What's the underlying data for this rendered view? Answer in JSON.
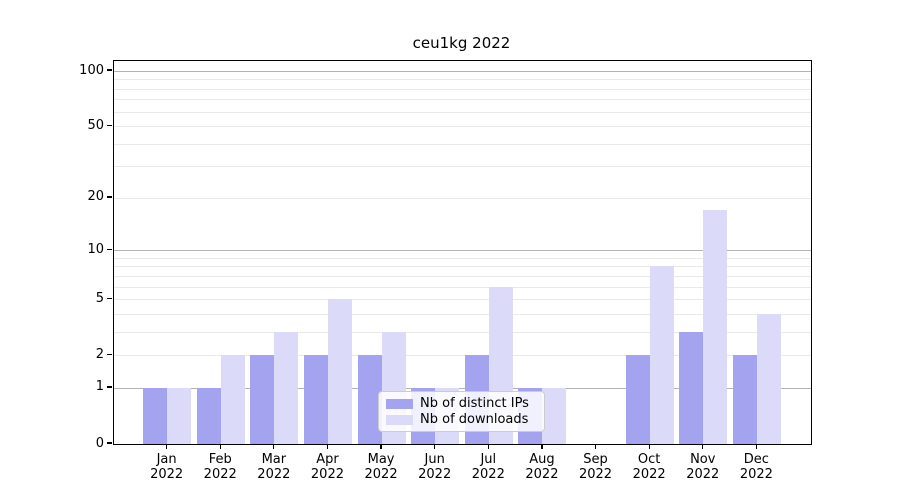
{
  "figure": {
    "title": "ceu1kg 2022",
    "background_color": "#ffffff"
  },
  "chart_data": {
    "type": "bar",
    "title": "ceu1kg 2022",
    "categories": [
      {
        "month": "Jan",
        "year": "2022"
      },
      {
        "month": "Feb",
        "year": "2022"
      },
      {
        "month": "Mar",
        "year": "2022"
      },
      {
        "month": "Apr",
        "year": "2022"
      },
      {
        "month": "May",
        "year": "2022"
      },
      {
        "month": "Jun",
        "year": "2022"
      },
      {
        "month": "Jul",
        "year": "2022"
      },
      {
        "month": "Aug",
        "year": "2022"
      },
      {
        "month": "Sep",
        "year": "2022"
      },
      {
        "month": "Oct",
        "year": "2022"
      },
      {
        "month": "Nov",
        "year": "2022"
      },
      {
        "month": "Dec",
        "year": "2022"
      }
    ],
    "series": [
      {
        "name": "Nb of distinct IPs",
        "color": "#a3a3f0",
        "values": [
          1,
          1,
          2,
          2,
          2,
          1,
          2,
          1,
          0,
          2,
          3,
          2
        ]
      },
      {
        "name": "Nb of downloads",
        "color": "#dbdbf9",
        "values": [
          1,
          2,
          3,
          5,
          3,
          1,
          6,
          1,
          0,
          8,
          17,
          4
        ]
      }
    ],
    "xlabel": "",
    "ylabel": "",
    "y_axis": {
      "scale": "symlog",
      "tick_values": [
        0,
        1,
        2,
        5,
        10,
        20,
        50,
        100
      ],
      "tick_labels": [
        "0",
        "1",
        "2",
        "5",
        "10",
        "20",
        "50",
        "100"
      ],
      "major_gridline_values": [
        1,
        10,
        100
      ],
      "minor_gridline_values": [
        2,
        3,
        4,
        5,
        6,
        7,
        8,
        9,
        20,
        30,
        40,
        50,
        60,
        70,
        80,
        90
      ],
      "max_labeled_value": 100
    },
    "legend_position": "lower center",
    "grid": true,
    "colors": {
      "major_grid": "#b3b3b3",
      "minor_grid": "#e9e9e9",
      "axis": "#000000"
    }
  }
}
